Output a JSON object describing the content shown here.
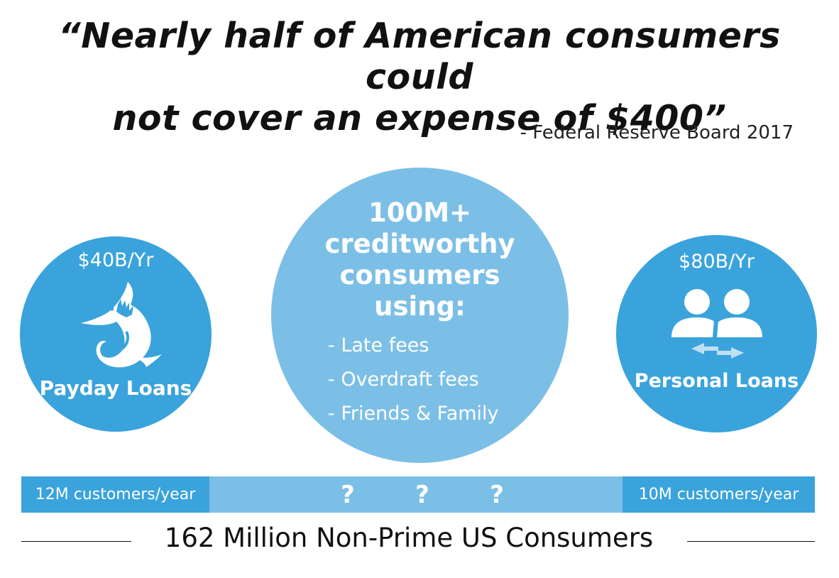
{
  "quote": {
    "line1": "“Nearly half of American consumers could",
    "line2": "not cover an expense of $400”"
  },
  "source": "- Federal Reserve Board 2017",
  "left_circle": {
    "amount": "$40B/Yr",
    "icon": "shark-icon",
    "label": "Payday Loans"
  },
  "center_circle": {
    "title": [
      "100M+",
      "creditworthy",
      "consumers",
      "using:"
    ],
    "items": [
      "- Late fees",
      "- Overdraft fees",
      "- Friends & Family"
    ]
  },
  "right_circle": {
    "amount": "$80B/Yr",
    "icon": "people-exchange-icon",
    "label": "Personal Loans"
  },
  "bar": {
    "left_label": "12M customers/year",
    "questions": [
      "?",
      "?",
      "?"
    ],
    "right_label": "10M customers/year"
  },
  "bottom_label": "162 Million Non-Prime US Consumers",
  "colors": {
    "dark_blue": "#3aa3dc",
    "light_blue": "#7cbfe6",
    "text": "#111111"
  }
}
